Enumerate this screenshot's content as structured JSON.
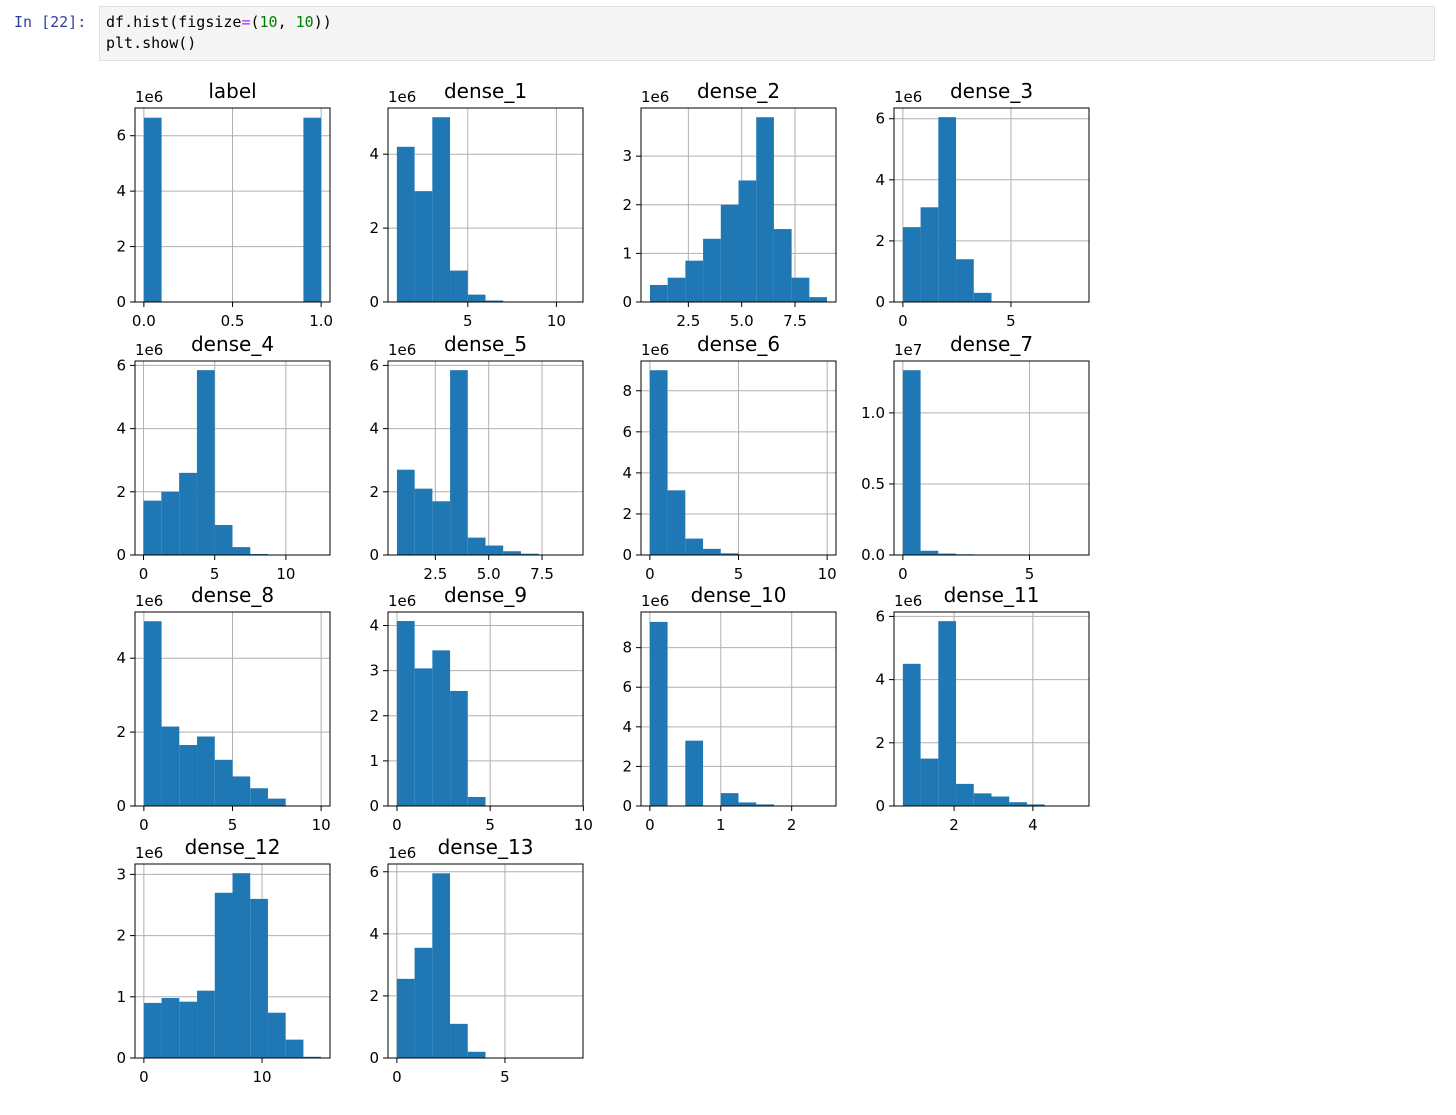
{
  "cell": {
    "prompt": "In [22]:",
    "line1": {
      "a": "df",
      "b": ".",
      "c": "hist(figsize",
      "d": "=",
      "e": "(",
      "f": "10",
      "g": ", ",
      "h": "10",
      "i": "))"
    },
    "line2": {
      "a": "plt",
      "b": ".",
      "c": "show()"
    }
  },
  "colors": {
    "bar": "#1f77b4",
    "grid": "#b0b0b0",
    "prompt": "#303f9f",
    "keyword": "#aa22ff",
    "number": "#008000"
  },
  "chart_data": [
    {
      "type": "bar",
      "title": "label",
      "scale": "1e6",
      "edges": [
        0,
        0.1,
        0.2,
        0.3,
        0.4,
        0.5,
        0.6,
        0.7,
        0.8,
        0.9,
        1.0
      ],
      "values": [
        6.65,
        0,
        0,
        0,
        0,
        0,
        0,
        0,
        0,
        6.65
      ],
      "xlim": [
        -0.05,
        1.05
      ],
      "ylim": [
        0,
        7
      ],
      "xticks": [
        0,
        0.5,
        1.0
      ],
      "xticklabels": [
        "0.0",
        "0.5",
        "1.0"
      ],
      "yticks": [
        0,
        2,
        4,
        6
      ],
      "yticklabels": [
        "0",
        "2",
        "4",
        "6"
      ]
    },
    {
      "type": "bar",
      "title": "dense_1",
      "scale": "1e6",
      "edges": [
        1,
        2,
        3,
        4,
        5,
        6,
        7,
        8,
        9,
        10,
        11
      ],
      "values": [
        4.2,
        3.0,
        5.0,
        0.85,
        0.2,
        0.04,
        0.01,
        0,
        0,
        0
      ],
      "xlim": [
        0.5,
        11.5
      ],
      "ylim": [
        0,
        5.25
      ],
      "xticks": [
        5,
        10
      ],
      "xticklabels": [
        "5",
        "10"
      ],
      "yticks": [
        0,
        2,
        4
      ],
      "yticklabels": [
        "0",
        "2",
        "4"
      ]
    },
    {
      "type": "bar",
      "title": "dense_2",
      "scale": "1e6",
      "edges": [
        0.7,
        1.53,
        2.36,
        3.19,
        4.02,
        4.85,
        5.68,
        6.51,
        7.34,
        8.17,
        9.0
      ],
      "values": [
        0.35,
        0.5,
        0.85,
        1.3,
        2.0,
        2.5,
        3.8,
        1.5,
        0.5,
        0.1
      ],
      "xlim": [
        0.28,
        9.42
      ],
      "ylim": [
        0,
        3.99
      ],
      "xticks": [
        2.5,
        5.0,
        7.5
      ],
      "xticklabels": [
        "2.5",
        "5.0",
        "7.5"
      ],
      "yticks": [
        0,
        1,
        2,
        3
      ],
      "yticklabels": [
        "0",
        "1",
        "2",
        "3"
      ]
    },
    {
      "type": "bar",
      "title": "dense_3",
      "scale": "1e6",
      "edges": [
        0,
        0.82,
        1.64,
        2.46,
        3.28,
        4.1,
        4.92,
        5.74,
        6.56,
        7.38,
        8.2
      ],
      "values": [
        2.45,
        3.1,
        6.05,
        1.4,
        0.3,
        0.02,
        0,
        0,
        0,
        0
      ],
      "xlim": [
        -0.41,
        8.61
      ],
      "ylim": [
        0,
        6.35
      ],
      "xticks": [
        0,
        5
      ],
      "xticklabels": [
        "0",
        "5"
      ],
      "yticks": [
        0,
        2,
        4,
        6
      ],
      "yticklabels": [
        "0",
        "2",
        "4",
        "6"
      ]
    },
    {
      "type": "bar",
      "title": "dense_4",
      "scale": "1e6",
      "edges": [
        0,
        1.25,
        2.5,
        3.75,
        5.0,
        6.25,
        7.5,
        8.75,
        10.0,
        11.25,
        12.5
      ],
      "values": [
        1.72,
        2.0,
        2.6,
        5.85,
        0.95,
        0.25,
        0.03,
        0.01,
        0,
        0
      ],
      "xlim": [
        -0.6,
        13.1
      ],
      "ylim": [
        0,
        6.14
      ],
      "xticks": [
        0,
        5,
        10
      ],
      "xticklabels": [
        "0",
        "5",
        "10"
      ],
      "yticks": [
        0,
        2,
        4,
        6
      ],
      "yticklabels": [
        "0",
        "2",
        "4",
        "6"
      ]
    },
    {
      "type": "bar",
      "title": "dense_5",
      "scale": "1e6",
      "edges": [
        0.7,
        1.53,
        2.36,
        3.19,
        4.02,
        4.85,
        5.68,
        6.51,
        7.34,
        8.17,
        9.0
      ],
      "values": [
        2.7,
        2.1,
        1.7,
        5.85,
        0.55,
        0.3,
        0.12,
        0.04,
        0.01,
        0
      ],
      "xlim": [
        0.28,
        9.42
      ],
      "ylim": [
        0,
        6.14
      ],
      "xticks": [
        2.5,
        5.0,
        7.5
      ],
      "xticklabels": [
        "2.5",
        "5.0",
        "7.5"
      ],
      "yticks": [
        0,
        2,
        4,
        6
      ],
      "yticklabels": [
        "0",
        "2",
        "4",
        "6"
      ]
    },
    {
      "type": "bar",
      "title": "dense_6",
      "scale": "1e6",
      "edges": [
        0,
        1,
        2,
        3,
        4,
        5,
        6,
        7,
        8,
        9,
        10
      ],
      "values": [
        9.0,
        3.15,
        0.8,
        0.3,
        0.08,
        0.02,
        0,
        0,
        0,
        0
      ],
      "xlim": [
        -0.5,
        10.5
      ],
      "ylim": [
        0,
        9.45
      ],
      "xticks": [
        0,
        5,
        10
      ],
      "xticklabels": [
        "0",
        "5",
        "10"
      ],
      "yticks": [
        0,
        2,
        4,
        6,
        8
      ],
      "yticklabels": [
        "0",
        "2",
        "4",
        "6",
        "8"
      ]
    },
    {
      "type": "bar",
      "title": "dense_7",
      "scale": "1e7",
      "edges": [
        0,
        0.7,
        1.4,
        2.1,
        2.8,
        3.5,
        4.2,
        4.9,
        5.6,
        6.3,
        7.0
      ],
      "values": [
        1.3,
        0.03,
        0.01,
        0.005,
        0,
        0,
        0,
        0,
        0,
        0
      ],
      "xlim": [
        -0.35,
        7.35
      ],
      "ylim": [
        0,
        1.365
      ],
      "xticks": [
        0,
        5
      ],
      "xticklabels": [
        "0",
        "5"
      ],
      "yticks": [
        0,
        0.5,
        1.0
      ],
      "yticklabels": [
        "0.0",
        "0.5",
        "1.0"
      ]
    },
    {
      "type": "bar",
      "title": "dense_8",
      "scale": "1e6",
      "edges": [
        0,
        1,
        2,
        3,
        4,
        5,
        6,
        7,
        8,
        9,
        10
      ],
      "values": [
        5.0,
        2.15,
        1.65,
        1.88,
        1.25,
        0.8,
        0.48,
        0.2,
        0,
        0
      ],
      "xlim": [
        -0.5,
        10.5
      ],
      "ylim": [
        0,
        5.25
      ],
      "xticks": [
        0,
        5,
        10
      ],
      "xticklabels": [
        "0",
        "5",
        "10"
      ],
      "yticks": [
        0,
        2,
        4
      ],
      "yticklabels": [
        "0",
        "2",
        "4"
      ]
    },
    {
      "type": "bar",
      "title": "dense_9",
      "scale": "1e6",
      "edges": [
        0,
        0.95,
        1.9,
        2.85,
        3.8,
        4.75,
        5.7,
        6.65,
        7.6,
        8.55,
        9.5
      ],
      "values": [
        4.1,
        3.05,
        3.45,
        2.55,
        0.2,
        0.01,
        0,
        0,
        0,
        0
      ],
      "xlim": [
        -0.48,
        9.98
      ],
      "ylim": [
        0,
        4.3
      ],
      "xticks": [
        0,
        5,
        10
      ],
      "xticklabels": [
        "0",
        "5",
        "10"
      ],
      "yticks": [
        0,
        1,
        2,
        3,
        4
      ],
      "yticklabels": [
        "0",
        "1",
        "2",
        "3",
        "4"
      ]
    },
    {
      "type": "bar",
      "title": "dense_10",
      "scale": "1e6",
      "edges": [
        0,
        0.25,
        0.5,
        0.75,
        1.0,
        1.25,
        1.5,
        1.75,
        2.0,
        2.25,
        2.5
      ],
      "values": [
        9.3,
        0,
        3.3,
        0,
        0.65,
        0.18,
        0.08,
        0.02,
        0,
        0
      ],
      "xlim": [
        -0.125,
        2.625
      ],
      "ylim": [
        0,
        9.8
      ],
      "xticks": [
        0,
        1,
        2
      ],
      "xticklabels": [
        "0",
        "1",
        "2"
      ],
      "yticks": [
        0,
        2,
        4,
        6,
        8
      ],
      "yticklabels": [
        "0",
        "2",
        "4",
        "6",
        "8"
      ]
    },
    {
      "type": "bar",
      "title": "dense_11",
      "scale": "1e6",
      "edges": [
        0.7,
        1.15,
        1.6,
        2.05,
        2.5,
        2.95,
        3.4,
        3.85,
        4.3,
        4.75,
        5.2
      ],
      "values": [
        4.5,
        1.5,
        5.85,
        0.7,
        0.4,
        0.3,
        0.12,
        0.05,
        0.01,
        0
      ],
      "xlim": [
        0.475,
        5.425
      ],
      "ylim": [
        0,
        6.14
      ],
      "xticks": [
        2,
        4
      ],
      "xticklabels": [
        "2",
        "4"
      ],
      "yticks": [
        0,
        2,
        4,
        6
      ],
      "yticklabels": [
        "0",
        "2",
        "4",
        "6"
      ]
    },
    {
      "type": "bar",
      "title": "dense_12",
      "scale": "1e6",
      "edges": [
        0,
        1.5,
        3.0,
        4.5,
        6.0,
        7.5,
        9.0,
        10.5,
        12.0,
        13.5,
        15.0
      ],
      "values": [
        0.9,
        0.98,
        0.92,
        1.1,
        2.7,
        3.02,
        2.6,
        0.74,
        0.3,
        0.02
      ],
      "xlim": [
        -0.75,
        15.75
      ],
      "ylim": [
        0,
        3.17
      ],
      "xticks": [
        0,
        10
      ],
      "xticklabels": [
        "0",
        "10"
      ],
      "yticks": [
        0,
        1,
        2,
        3
      ],
      "yticklabels": [
        "0",
        "1",
        "2",
        "3"
      ]
    },
    {
      "type": "bar",
      "title": "dense_13",
      "scale": "1e6",
      "edges": [
        0,
        0.82,
        1.64,
        2.46,
        3.28,
        4.1,
        4.92,
        5.74,
        6.56,
        7.38,
        8.2
      ],
      "values": [
        2.55,
        3.55,
        5.95,
        1.1,
        0.2,
        0.01,
        0,
        0,
        0,
        0
      ],
      "xlim": [
        -0.41,
        8.61
      ],
      "ylim": [
        0,
        6.25
      ],
      "xticks": [
        0,
        5
      ],
      "xticklabels": [
        "0",
        "5"
      ],
      "yticks": [
        0,
        2,
        4,
        6
      ],
      "yticklabels": [
        "0",
        "2",
        "4",
        "6"
      ]
    }
  ]
}
